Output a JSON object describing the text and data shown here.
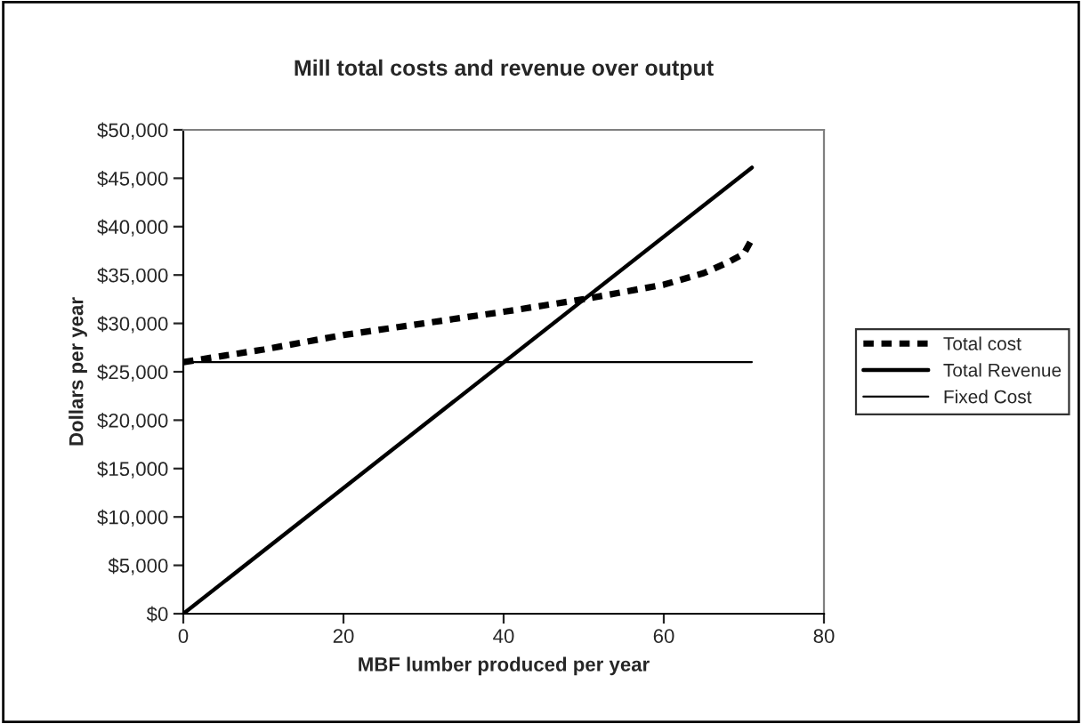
{
  "chart_data": {
    "type": "line",
    "title": "Mill total costs and revenue over output",
    "xlabel": "MBF lumber produced per year",
    "ylabel": "Dollars per year",
    "xlim": [
      0,
      80
    ],
    "xticks": [
      0,
      20,
      40,
      60,
      80
    ],
    "ylim": [
      0,
      50000
    ],
    "yticks": [
      {
        "value": 0,
        "label": "$0"
      },
      {
        "value": 5000,
        "label": "$5,000"
      },
      {
        "value": 10000,
        "label": "$10,000"
      },
      {
        "value": 15000,
        "label": "$15,000"
      },
      {
        "value": 20000,
        "label": "$20,000"
      },
      {
        "value": 25000,
        "label": "$25,000"
      },
      {
        "value": 30000,
        "label": "$30,000"
      },
      {
        "value": 35000,
        "label": "$35,000"
      },
      {
        "value": 40000,
        "label": "$40,000"
      },
      {
        "value": 45000,
        "label": "$45,000"
      },
      {
        "value": 50000,
        "label": "$50,000"
      }
    ],
    "grid": false,
    "legend": "right",
    "marker": "none",
    "series": [
      {
        "name": "Total cost",
        "color": "#000000",
        "line_style": "dashed",
        "x": [
          0,
          10,
          20,
          30,
          40,
          50,
          60,
          65,
          68,
          70,
          71
        ],
        "values": [
          26000,
          27300,
          28800,
          30000,
          31200,
          32500,
          34000,
          35200,
          36300,
          37200,
          38700
        ]
      },
      {
        "name": "Total Revenue",
        "color": "#000000",
        "line_style": "solid",
        "x": [
          0,
          71
        ],
        "values": [
          0,
          46100
        ]
      },
      {
        "name": "Fixed Cost",
        "color": "#000000",
        "line_style": "solid",
        "x": [
          0,
          71
        ],
        "values": [
          26000,
          26000
        ]
      }
    ]
  }
}
